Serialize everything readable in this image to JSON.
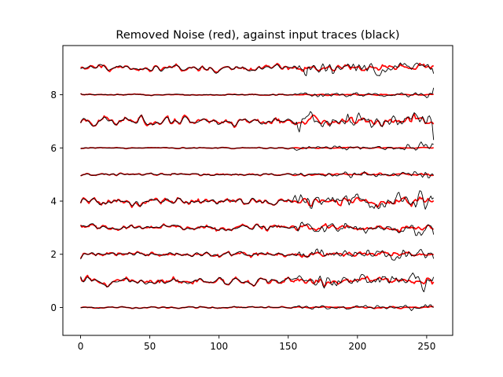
{
  "chart_data": {
    "type": "line",
    "title": "Removed Noise (red), against input traces (black)",
    "xlabel": "",
    "ylabel": "",
    "xlim": [
      -12.8,
      268.8
    ],
    "ylim": [
      -1.05,
      9.85
    ],
    "xticks": [
      0,
      50,
      100,
      150,
      200,
      250
    ],
    "yticks": [
      0,
      2,
      4,
      6,
      8
    ],
    "grid": false,
    "legend": "none",
    "samples_per_trace": 256,
    "trace_offsets": [
      0,
      1,
      2,
      3,
      4,
      5,
      6,
      7,
      8,
      9
    ],
    "trace_amplitudes": [
      0.04,
      0.22,
      0.16,
      0.16,
      0.2,
      0.06,
      0.03,
      0.22,
      0.04,
      0.17
    ],
    "late_burst": {
      "start_sample": 155,
      "note_description": "black traces show larger deviations after ~sample 155"
    },
    "series": [
      {
        "role": "input-traces",
        "color": "#000000"
      },
      {
        "role": "removed-noise",
        "color": "#ff0000"
      }
    ]
  }
}
